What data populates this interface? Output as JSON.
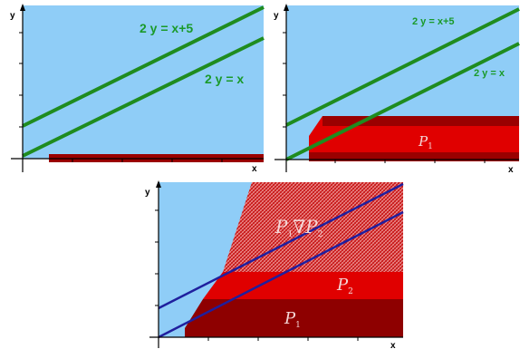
{
  "colors": {
    "sky": "#8fcdf7",
    "green": "#1f8c1f",
    "blue": "#1f1f9e",
    "dark_red": "#8e0000",
    "mid_red": "#b80000",
    "bright_red": "#e10000",
    "hatch": "#e27575"
  },
  "panel_top_left": {
    "x_axis_label": "x",
    "y_axis_label": "y",
    "line_upper_label": "2 y = x+5",
    "line_lower_label": "2 y = x"
  },
  "panel_top_right": {
    "x_axis_label": "x",
    "y_axis_label": "y",
    "line_upper_label": "2 y = x+5",
    "line_lower_label": "2 y = x",
    "region_label": "P",
    "region_subscript": "1"
  },
  "panel_bottom": {
    "x_axis_label": "x",
    "y_axis_label": "y",
    "widening_label_p": "P",
    "widening_label_sub1": "1",
    "widening_op": "∇",
    "widening_label_sub2": "2",
    "p2_label": "P",
    "p2_subscript": "2",
    "p1_label": "P",
    "p1_subscript": "1"
  }
}
